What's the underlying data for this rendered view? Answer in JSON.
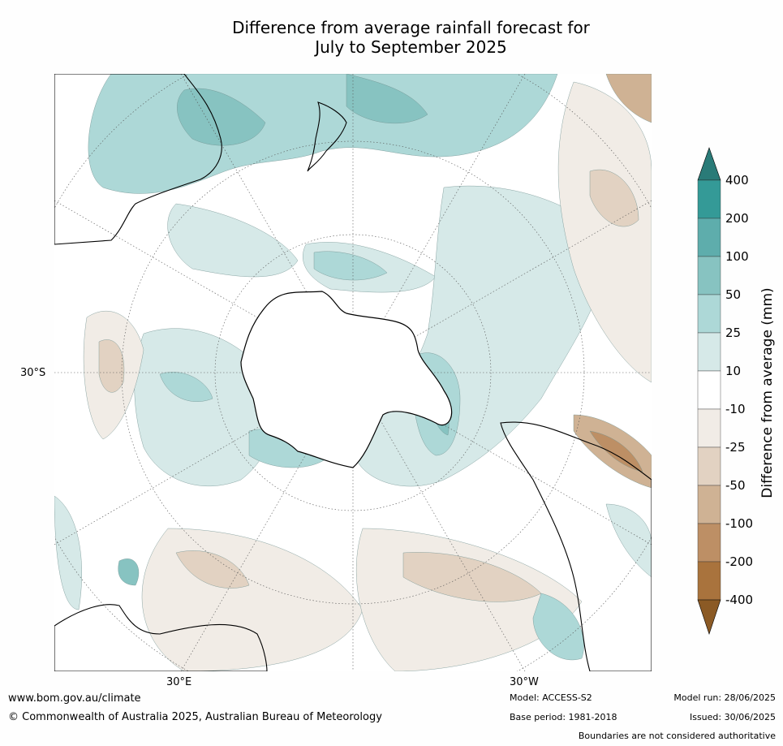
{
  "title_line1": "Difference from average rainfall forecast for",
  "title_line2": "July to September 2025",
  "map": {
    "projection": "south-polar-stereographic",
    "lat_label": "30°S",
    "lon_label_east": "30°E",
    "lon_label_west": "30°W"
  },
  "colorbar": {
    "label": "Difference from average (mm)",
    "ticks": [
      "400",
      "200",
      "100",
      "50",
      "25",
      "10",
      "-10",
      "-25",
      "-50",
      "-100",
      "-200",
      "-400"
    ],
    "colors": [
      "#2a7b78",
      "#349a97",
      "#5eadac",
      "#87c3c1",
      "#add8d7",
      "#d6e9e8",
      "#ffffff",
      "#f1ece6",
      "#e2d2c2",
      "#cfb294",
      "#bd8f65",
      "#a9733d",
      "#8b5a25"
    ]
  },
  "footer": {
    "url": "www.bom.gov.au/climate",
    "copyright": "© Commonwealth of Australia 2025, Australian Bureau of Meteorology",
    "model": "Model: ACCESS-S2",
    "base_period": "Base period: 1981-2018",
    "model_run": "Model run: 28/06/2025",
    "issued": "Issued: 30/06/2025",
    "disclaimer": "Boundaries are not considered authoritative"
  }
}
